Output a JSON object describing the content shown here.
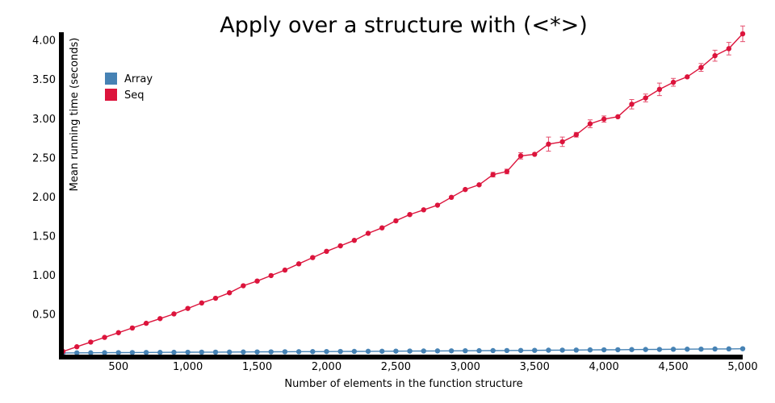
{
  "chart_data": {
    "type": "line",
    "title": "Apply over a structure with (<*>)",
    "xlabel": "Number of elements in the function structure",
    "ylabel": "Mean running time (seconds)",
    "xlim": [
      100,
      5000
    ],
    "ylim": [
      0,
      4.1
    ],
    "x_ticks": [
      500,
      1000,
      1500,
      2000,
      2500,
      3000,
      3500,
      4000,
      4500,
      5000
    ],
    "x_tick_labels": [
      "500",
      "1,000",
      "1,500",
      "2,000",
      "2,500",
      "3,000",
      "3,500",
      "4,000",
      "4,500",
      "5,000"
    ],
    "y_ticks": [
      0.5,
      1.0,
      1.5,
      2.0,
      2.5,
      3.0,
      3.5,
      4.0
    ],
    "y_tick_labels": [
      "0.50",
      "1.00",
      "1.50",
      "2.00",
      "2.50",
      "3.00",
      "3.50",
      "4.00"
    ],
    "grid": false,
    "legend_position": "top-left",
    "x": [
      100,
      200,
      300,
      400,
      500,
      600,
      700,
      800,
      900,
      1000,
      1100,
      1200,
      1300,
      1400,
      1500,
      1600,
      1700,
      1800,
      1900,
      2000,
      2100,
      2200,
      2300,
      2400,
      2500,
      2600,
      2700,
      2800,
      2900,
      3000,
      3100,
      3200,
      3300,
      3400,
      3500,
      3600,
      3700,
      3800,
      3900,
      4000,
      4100,
      4200,
      4300,
      4400,
      4500,
      4600,
      4700,
      4800,
      4900,
      5000
    ],
    "series": [
      {
        "name": "Array",
        "color": "#4682b4",
        "values": [
          0.001,
          0.002,
          0.003,
          0.004,
          0.005,
          0.006,
          0.007,
          0.008,
          0.009,
          0.01,
          0.011,
          0.011,
          0.012,
          0.013,
          0.014,
          0.015,
          0.016,
          0.017,
          0.018,
          0.019,
          0.02,
          0.021,
          0.022,
          0.023,
          0.024,
          0.025,
          0.026,
          0.027,
          0.028,
          0.029,
          0.03,
          0.031,
          0.032,
          0.033,
          0.034,
          0.036,
          0.037,
          0.038,
          0.04,
          0.041,
          0.042,
          0.044,
          0.045,
          0.046,
          0.048,
          0.049,
          0.05,
          0.052,
          0.053,
          0.055
        ],
        "errors": [
          0,
          0,
          0,
          0,
          0,
          0,
          0,
          0,
          0,
          0,
          0,
          0,
          0,
          0,
          0,
          0,
          0,
          0,
          0,
          0,
          0,
          0,
          0,
          0,
          0,
          0,
          0,
          0,
          0,
          0,
          0,
          0,
          0,
          0,
          0,
          0,
          0,
          0,
          0,
          0,
          0,
          0.003,
          0,
          0,
          0,
          0,
          0,
          0,
          0,
          0
        ]
      },
      {
        "name": "Seq",
        "color": "#dc143c",
        "values": [
          0.02,
          0.08,
          0.14,
          0.2,
          0.26,
          0.32,
          0.38,
          0.44,
          0.5,
          0.57,
          0.64,
          0.7,
          0.77,
          0.86,
          0.92,
          0.99,
          1.06,
          1.14,
          1.22,
          1.3,
          1.37,
          1.44,
          1.53,
          1.6,
          1.69,
          1.77,
          1.83,
          1.89,
          1.99,
          2.09,
          2.15,
          2.28,
          2.32,
          2.52,
          2.54,
          2.67,
          2.7,
          2.79,
          2.93,
          2.99,
          3.02,
          3.18,
          3.26,
          3.37,
          3.46,
          3.53,
          3.65,
          3.8,
          3.89,
          4.08
        ],
        "errors": [
          0,
          0,
          0,
          0,
          0,
          0,
          0,
          0,
          0,
          0,
          0,
          0,
          0,
          0,
          0,
          0,
          0,
          0,
          0,
          0,
          0,
          0,
          0,
          0,
          0,
          0,
          0,
          0,
          0,
          0,
          0,
          0.03,
          0.03,
          0.04,
          0,
          0.09,
          0.06,
          0.03,
          0.05,
          0.04,
          0,
          0.06,
          0.05,
          0.08,
          0.05,
          0,
          0.05,
          0.07,
          0.08,
          0.1
        ]
      }
    ]
  }
}
